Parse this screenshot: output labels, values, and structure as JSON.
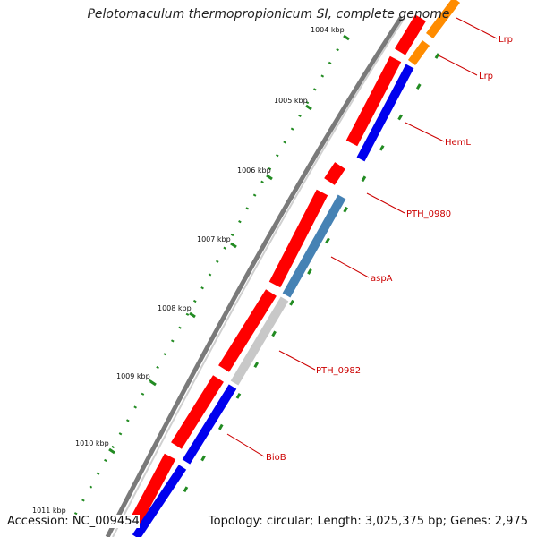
{
  "header": {
    "title": "Pelotomaculum thermopropionicum SI, complete genome"
  },
  "footer": {
    "accession": "Accession: NC_009454",
    "summary": "Topology: circular; Length: 3,025,375 bp; Genes: 2,975"
  },
  "ticks": [
    "1004 kbp",
    "1005 kbp",
    "1006 kbp",
    "1007 kbp",
    "1008 kbp",
    "1009 kbp",
    "1010 kbp",
    "1011 kbp"
  ],
  "genes": [
    "Lrp",
    "Lrp",
    "HemL",
    "PTH_0980",
    "aspA",
    "PTH_0982",
    "BioB"
  ],
  "colors": {
    "cds": "#ff0000",
    "backbone": "#888888",
    "tick_major": "#228b22",
    "label": "#cc0000",
    "feature_blue": "#0000ee",
    "feature_orange": "#ff8c00",
    "feature_steel": "#4682b4",
    "feature_gray": "#c8c8c8"
  }
}
